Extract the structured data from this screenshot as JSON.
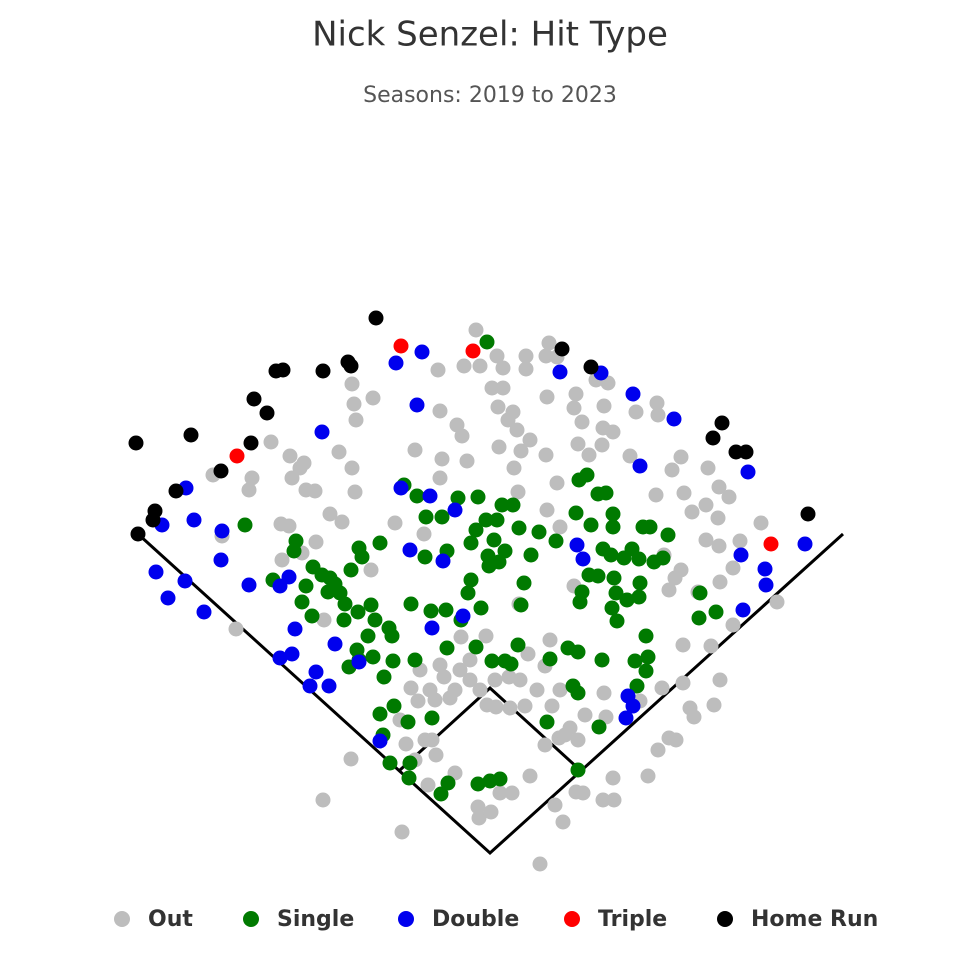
{
  "chart_data": {
    "type": "scatter",
    "title": "Nick Senzel: Hit Type",
    "subtitle": "Seasons: 2019 to 2023",
    "xlim": [
      -490,
      490
    ],
    "ylim": [
      -127,
      853
    ],
    "series": [
      {
        "name": "Out",
        "color": "#bdbdbd",
        "x": [
          -14,
          -26,
          -10,
          7,
          13,
          36,
          36,
          59,
          56,
          67,
          2,
          13,
          8,
          23,
          18,
          27,
          9,
          31,
          57,
          86,
          84,
          92,
          114,
          118,
          106,
          146,
          167,
          168,
          123,
          113,
          112,
          99,
          88,
          140,
          191,
          182,
          166,
          194,
          218,
          229,
          239,
          216,
          228,
          202,
          271,
          250,
          229,
          216,
          243,
          230,
          208,
          185,
          191,
          174,
          179,
          287,
          243,
          221,
          193,
          193,
          230,
          224,
          200,
          204,
          179,
          186,
          168,
          158,
          123,
          124,
          113,
          93,
          86,
          65,
          40,
          73,
          22,
          10,
          -12,
          -11,
          1,
          50,
          -88,
          -167,
          -139,
          -62,
          -75,
          -54,
          -35,
          -3,
          6,
          20,
          35,
          47,
          62,
          70,
          55,
          38,
          30,
          19,
          5,
          -20,
          -30,
          -46,
          -60,
          -72,
          -79,
          -40,
          -84,
          -58,
          69,
          80,
          88,
          95,
          116,
          114,
          150,
          172,
          -119,
          -138,
          -135,
          -160,
          -148,
          -188,
          -208,
          -201,
          -209,
          -190,
          -198,
          -200,
          -186,
          -175,
          -184,
          -219,
          -241,
          -238,
          -277,
          -151,
          -134,
          -117,
          -136,
          -138,
          -75,
          -50,
          -33,
          -28,
          -48,
          -23,
          -50,
          -95,
          -66,
          56,
          28,
          67,
          57,
          70,
          29,
          84,
          60,
          -4,
          -29,
          24,
          40,
          -52,
          -254,
          -268,
          -166,
          -174,
          -70,
          -50,
          -20,
          -55,
          -90,
          -65,
          -35,
          -10,
          55,
          75
        ],
        "y": [
          523,
          487,
          487,
          497,
          485,
          497,
          484,
          510,
          497,
          496,
          465,
          465,
          446,
          441,
          433,
          423,
          406,
          402,
          456,
          459,
          445,
          431,
          447,
          470,
          473,
          441,
          450,
          438,
          421,
          425,
          408,
          398,
          409,
          397,
          396,
          383,
          358,
          360,
          385,
          366,
          356,
          348,
          335,
          341,
          330,
          312,
          307,
          313,
          285,
          271,
          261,
          275,
          283,
          298,
          263,
          251,
          228,
          207,
          208,
          170,
          173,
          148,
          145,
          136,
          115,
          113,
          103,
          77,
          75,
          53,
          53,
          60,
          61,
          48,
          77,
          31,
          60,
          60,
          46,
          35,
          41,
          -11,
          21,
          53,
          94,
          68,
          93,
          98,
          80,
          148,
          146,
          145,
          147,
          163,
          147,
          163,
          187,
          199,
          173,
          176,
          173,
          173,
          183,
          176,
          163,
          152,
          165,
          155,
          109,
          113,
          115,
          125,
          113,
          138,
          136,
          160,
          152,
          165,
          283,
          385,
          361,
          339,
          331,
          300,
          293,
          327,
          329,
          385,
          375,
          397,
          390,
          362,
          363,
          411,
          363,
          375,
          378,
          401,
          433,
          455,
          449,
          469,
          403,
          442,
          428,
          417,
          394,
          392,
          375,
          330,
          319,
          398,
          361,
          370,
          343,
          326,
          249,
          267,
          213,
          217,
          216,
          385,
          413,
          483,
          224,
          317,
          233,
          311,
          183,
          188,
          193,
          153,
          133,
          113,
          163,
          163,
          108,
          118
        ]
      },
      {
        "name": "Single",
        "color": "#007a00",
        "x": [
          -3,
          -245,
          -217,
          -196,
          -194,
          -188,
          -184,
          -177,
          -178,
          -168,
          -162,
          -160,
          -155,
          -150,
          -145,
          -146,
          -139,
          -131,
          -128,
          -110,
          -132,
          -119,
          -115,
          -101,
          -98,
          -133,
          -141,
          -117,
          -131,
          -97,
          -75,
          -79,
          -59,
          -44,
          -29,
          -22,
          -9,
          -86,
          -73,
          -64,
          -48,
          -32,
          -12,
          -14,
          -19,
          4,
          -2,
          -4,
          7,
          12,
          23,
          29,
          49,
          66,
          41,
          15,
          9,
          -1,
          -19,
          -43,
          -65,
          34,
          31,
          28,
          -14,
          2,
          15,
          21,
          60,
          78,
          88,
          112,
          83,
          88,
          145,
          158,
          156,
          147,
          156,
          127,
          122,
          126,
          137,
          149,
          150,
          124,
          108,
          121,
          134,
          142,
          149,
          164,
          97,
          89,
          108,
          116,
          86,
          101,
          123,
          123,
          153,
          160,
          178,
          173,
          113,
          92,
          90,
          99,
          210,
          209,
          226,
          57,
          109,
          88,
          -110,
          -107,
          -96,
          -82,
          -58,
          -100,
          -80,
          -81,
          -49,
          -42,
          -12,
          0,
          10,
          -43,
          -106,
          -122
        ],
        "y": [
          511,
          328,
          273,
          302,
          312,
          251,
          267,
          286,
          237,
          278,
          261,
          275,
          269,
          260,
          249,
          233,
          283,
          305,
          296,
          310,
          241,
          248,
          233,
          225,
          217,
          203,
          186,
          196,
          193,
          192,
          193,
          249,
          242,
          243,
          233,
          260,
          245,
          368,
          357,
          336,
          336,
          355,
          356,
          323,
          310,
          313,
          297,
          333,
          333,
          348,
          348,
          325,
          321,
          312,
          298,
          302,
          291,
          287,
          273,
          302,
          296,
          270,
          248,
          208,
          206,
          192,
          192,
          189,
          194,
          205,
          201,
          193,
          167,
          160,
          192,
          196,
          182,
          167,
          217,
          232,
          245,
          260,
          253,
          256,
          270,
          275,
          277,
          298,
          295,
          304,
          294,
          291,
          378,
          373,
          359,
          360,
          340,
          328,
          339,
          326,
          326,
          326,
          318,
          295,
          304,
          261,
          251,
          278,
          260,
          235,
          241,
          131,
          126,
          83,
          139,
          118,
          147,
          131,
          135,
          90,
          90,
          75,
          59,
          70,
          69,
          72,
          74,
          205,
          176,
          217
        ]
      },
      {
        "name": "Double",
        "color": "#0000ee",
        "x": [
          -304,
          -328,
          -296,
          -268,
          -269,
          -334,
          -305,
          -322,
          -286,
          -241,
          -210,
          -201,
          -195,
          -210,
          -198,
          -174,
          -180,
          -161,
          -155,
          -131,
          -168,
          -94,
          -68,
          -73,
          -89,
          -60,
          -35,
          -80,
          -47,
          -27,
          -58,
          -110,
          70,
          111,
          143,
          184,
          150,
          258,
          87,
          93,
          251,
          275,
          276,
          253,
          315,
          138,
          143,
          136
        ],
        "y": [
          365,
          328,
          333,
          322,
          293,
          281,
          272,
          255,
          241,
          268,
          267,
          276,
          224,
          195,
          199,
          181,
          167,
          167,
          209,
          191,
          421,
          490,
          501,
          448,
          365,
          357,
          343,
          303,
          292,
          237,
          225,
          112,
          481,
          480,
          459,
          434,
          387,
          381,
          308,
          294,
          298,
          284,
          268,
          243,
          309,
          157,
          147,
          135
        ]
      },
      {
        "name": "Triple",
        "color": "#ff0000",
        "x": [
          -253,
          -89,
          -17,
          281
        ],
        "y": [
          397,
          507,
          502,
          309
        ]
      },
      {
        "name": "Home Run",
        "color": "#000000",
        "x": [
          -354,
          -299,
          -314,
          -335,
          -337,
          -352,
          -269,
          -239,
          -236,
          -223,
          -214,
          -207,
          -167,
          -142,
          -139,
          -114,
          72,
          101,
          232,
          223,
          246,
          256,
          318
        ],
        "y": [
          410,
          418,
          362,
          342,
          333,
          319,
          382,
          410,
          454,
          440,
          482,
          483,
          482,
          491,
          487,
          535,
          504,
          486,
          430,
          415,
          401,
          401,
          339
        ]
      }
    ]
  }
}
